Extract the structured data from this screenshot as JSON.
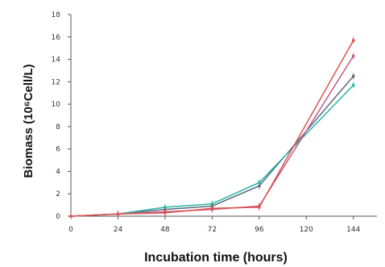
{
  "chart_data": {
    "type": "line",
    "title": "",
    "xlabel": "Incubation time (hours)",
    "ylabel": "Biomass (10⁶Cell/L)",
    "x": [
      0,
      24,
      48,
      72,
      96,
      144
    ],
    "xticks": [
      "0",
      "24",
      "48",
      "72",
      "96",
      "120",
      "144"
    ],
    "xlim": [
      0,
      156
    ],
    "ylim": [
      0,
      18
    ],
    "yticks": [
      "0",
      "2",
      "4",
      "6",
      "8",
      "10",
      "12",
      "14",
      "16",
      "18"
    ],
    "grid": false,
    "series": [
      {
        "color": "#5b6b7b",
        "values": [
          0,
          0.2,
          0.6,
          0.9,
          2.7,
          12.5
        ]
      },
      {
        "color": "#2ab5a5",
        "values": [
          0,
          0.2,
          0.8,
          1.1,
          3.0,
          11.7
        ]
      },
      {
        "color": "#c05a8a",
        "values": [
          0,
          0.2,
          0.4,
          0.6,
          0.9,
          14.3
        ]
      },
      {
        "color": "#e0524f",
        "values": [
          0,
          0.2,
          0.3,
          0.7,
          0.8,
          15.7
        ]
      }
    ]
  }
}
